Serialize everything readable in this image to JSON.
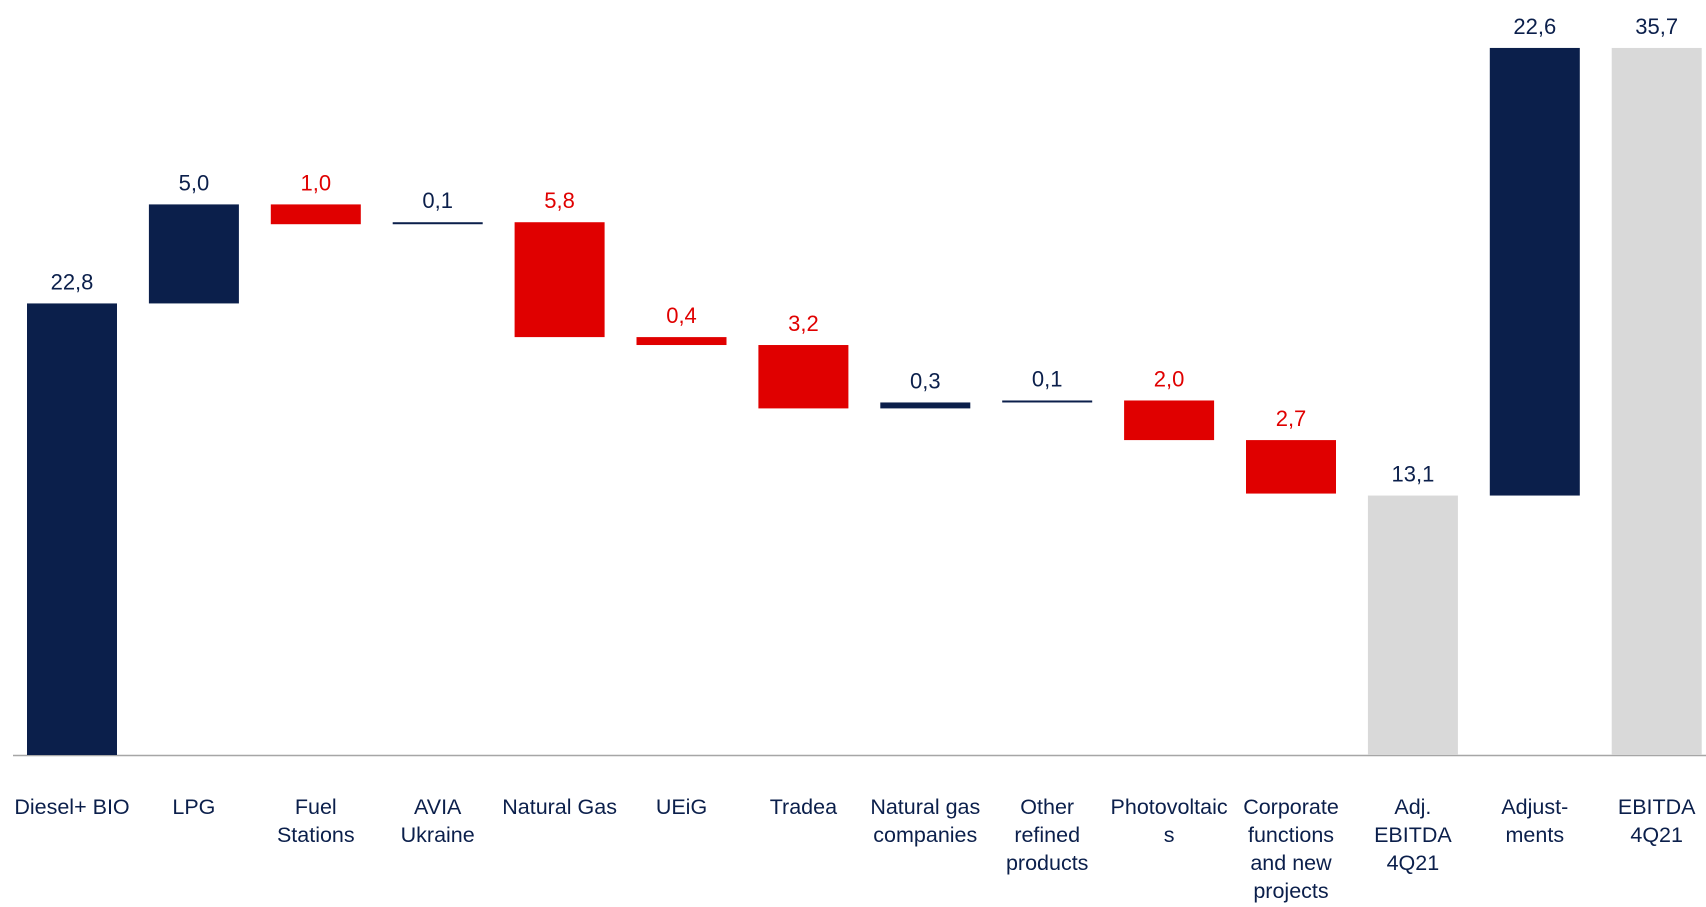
{
  "chart_data": {
    "type": "waterfall",
    "categories": [
      "Diesel+ BIO",
      "LPG",
      "Fuel Stations",
      "AVIA Ukraine",
      "Natural Gas",
      "UEiG",
      "Tradea",
      "Natural gas companies",
      "Other refined products",
      "Photovoltaics",
      "Corporate functions and new projects",
      "Adj. EBITDA 4Q21",
      "Adjust-ments",
      "EBITDA 4Q21"
    ],
    "values": [
      22.8,
      5.0,
      -1.0,
      0.1,
      -5.8,
      -0.4,
      -3.2,
      0.3,
      0.1,
      -2.0,
      -2.7,
      13.1,
      22.6,
      35.7
    ],
    "value_labels": [
      "22,8",
      "5,0",
      "1,0",
      "0,1",
      "5,8",
      "0,4",
      "3,2",
      "0,3",
      "0,1",
      "2,0",
      "2,7",
      "13,1",
      "22,6",
      "35,7"
    ],
    "measures": [
      "relative",
      "relative",
      "relative",
      "relative",
      "relative",
      "relative",
      "relative",
      "relative",
      "relative",
      "relative",
      "relative",
      "total",
      "relative",
      "total"
    ],
    "increase_color": "#0b1f4b",
    "decrease_color": "#e00000",
    "total_color": "#d9d9d9",
    "ylim": [
      0,
      36
    ]
  }
}
